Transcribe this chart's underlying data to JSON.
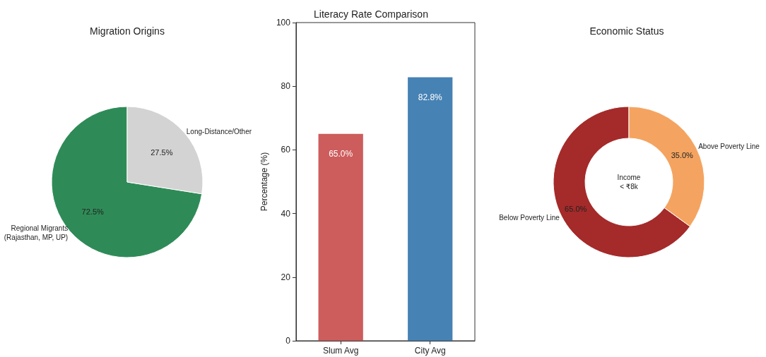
{
  "chart_data": [
    {
      "type": "pie",
      "title": "Migration Origins",
      "categories": [
        "Regional Migrants\n(Rajasthan, MP, UP)",
        "Long-Distance/Other"
      ],
      "values": [
        72.5,
        27.5
      ],
      "colors": [
        "#2e8b57",
        "#d3d3d3"
      ],
      "value_labels": [
        "72.5%",
        "27.5%"
      ],
      "legend": false
    },
    {
      "type": "bar",
      "title": "Literacy Rate Comparison",
      "ylabel": "Percentage (%)",
      "categories": [
        "Slum Avg",
        "City Avg"
      ],
      "values": [
        65.0,
        82.8
      ],
      "colors": [
        "#cd5c5c",
        "#4682b4"
      ],
      "value_labels": [
        "65.0%",
        "82.8%"
      ],
      "ylim": [
        0,
        100
      ],
      "yticks": [
        0,
        20,
        40,
        60,
        80,
        100
      ],
      "grid": false,
      "legend": false
    },
    {
      "type": "donut",
      "title": "Economic Status",
      "categories": [
        "Below Poverty Line",
        "Above Poverty Line"
      ],
      "values": [
        65.0,
        35.0
      ],
      "colors": [
        "#a52a2a",
        "#f4a460"
      ],
      "value_labels": [
        "65.0%",
        "35.0%"
      ],
      "annotations": [
        "Income\n< ₹8k"
      ],
      "legend": false
    }
  ]
}
